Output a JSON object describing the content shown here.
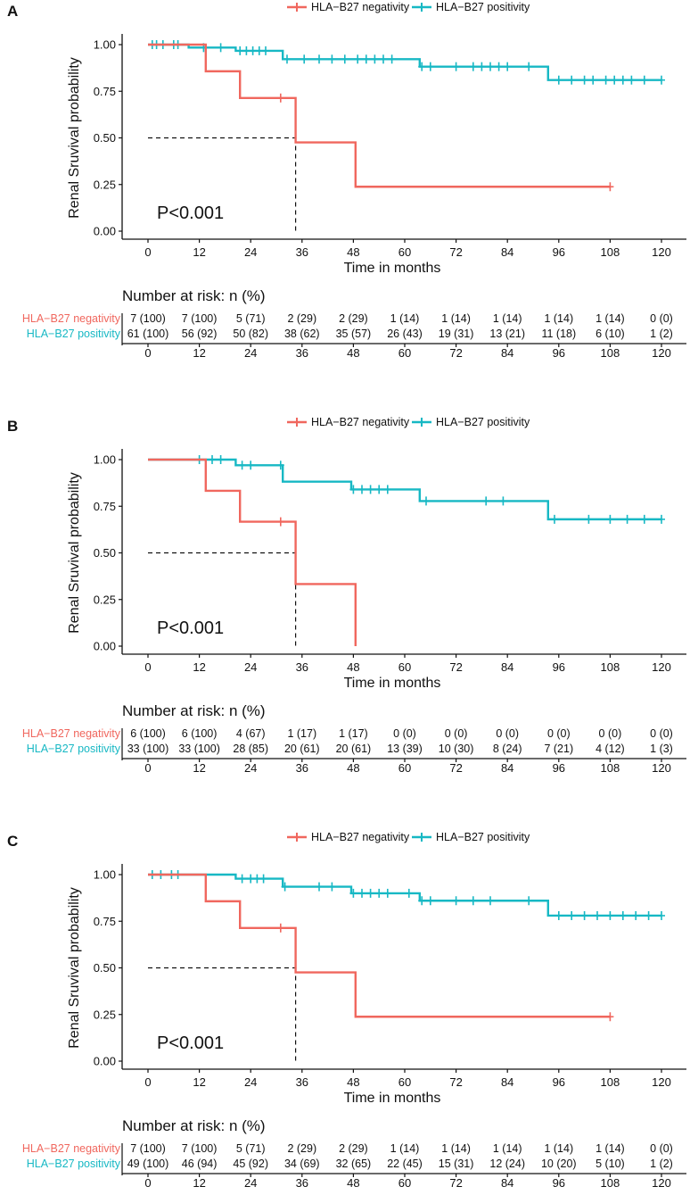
{
  "colors": {
    "negativity": "#F0675E",
    "positivity": "#17B8C4",
    "median": "#111111"
  },
  "legend": {
    "negativity_label": "HLA−B27 negativity",
    "positivity_label": "HLA−B27 positivity"
  },
  "risk": {
    "title": "Number at risk: n (%)",
    "group_negativity": "HLA−B27 negativity",
    "group_positivity": "HLA−B27 positivity"
  },
  "chart_data": [
    {
      "panel": "A",
      "type": "line",
      "title": "",
      "xlabel": "Time in months",
      "ylabel": "Renal Sruvival probability",
      "xlim": [
        0,
        120
      ],
      "ylim": [
        0,
        1
      ],
      "x_ticks": [
        "0",
        "12",
        "24",
        "36",
        "48",
        "60",
        "72",
        "84",
        "96",
        "108",
        "120"
      ],
      "y_ticks": [
        "0.00",
        "0.25",
        "0.50",
        "0.75",
        "1.00"
      ],
      "p_value": "P<0.001",
      "median": {
        "x": 34.5,
        "y": 0.5
      },
      "series": [
        {
          "name": "HLA−B27 negativity",
          "color_key": "negativity",
          "steps": [
            [
              0,
              1
            ],
            [
              13.5,
              0.857
            ],
            [
              21.5,
              0.714
            ],
            [
              34.5,
              0.476
            ],
            [
              48.5,
              0.238
            ],
            [
              108,
              0.238
            ]
          ],
          "censors": [
            [
              31,
              0.714
            ],
            [
              108,
              0.238
            ]
          ]
        },
        {
          "name": "HLA−B27 positivity",
          "color_key": "positivity",
          "steps": [
            [
              0,
              1
            ],
            [
              9.5,
              0.984
            ],
            [
              20.5,
              0.967
            ],
            [
              31.5,
              0.922
            ],
            [
              63.5,
              0.882
            ],
            [
              93.5,
              0.81
            ],
            [
              120,
              0.81
            ]
          ],
          "censors": [
            [
              1,
              1
            ],
            [
              2,
              1
            ],
            [
              3.5,
              1
            ],
            [
              6,
              1
            ],
            [
              7,
              1
            ],
            [
              13,
              0.984
            ],
            [
              17,
              0.984
            ],
            [
              21.5,
              0.967
            ],
            [
              23,
              0.967
            ],
            [
              24.5,
              0.967
            ],
            [
              26,
              0.967
            ],
            [
              27.5,
              0.967
            ],
            [
              32.5,
              0.922
            ],
            [
              36.5,
              0.922
            ],
            [
              40,
              0.922
            ],
            [
              43,
              0.922
            ],
            [
              46,
              0.922
            ],
            [
              49,
              0.922
            ],
            [
              51,
              0.922
            ],
            [
              53,
              0.922
            ],
            [
              55,
              0.922
            ],
            [
              57,
              0.922
            ],
            [
              64,
              0.882
            ],
            [
              66,
              0.882
            ],
            [
              72,
              0.882
            ],
            [
              76,
              0.882
            ],
            [
              78,
              0.882
            ],
            [
              80,
              0.882
            ],
            [
              82,
              0.882
            ],
            [
              84,
              0.882
            ],
            [
              89,
              0.882
            ],
            [
              96,
              0.81
            ],
            [
              99,
              0.81
            ],
            [
              102,
              0.81
            ],
            [
              104,
              0.81
            ],
            [
              107,
              0.81
            ],
            [
              109,
              0.81
            ],
            [
              111,
              0.81
            ],
            [
              113,
              0.81
            ],
            [
              116,
              0.81
            ],
            [
              120,
              0.81
            ]
          ]
        }
      ],
      "risk_times": [
        "0",
        "12",
        "24",
        "36",
        "48",
        "60",
        "72",
        "84",
        "96",
        "108",
        "120"
      ],
      "risk_negativity": [
        "7 (100)",
        "7 (100)",
        "5 (71)",
        "2 (29)",
        "2 (29)",
        "1 (14)",
        "1 (14)",
        "1 (14)",
        "1 (14)",
        "1 (14)",
        "0 (0)"
      ],
      "risk_positivity": [
        "61 (100)",
        "56 (92)",
        "50 (82)",
        "38 (62)",
        "35 (57)",
        "26 (43)",
        "19 (31)",
        "13 (21)",
        "11 (18)",
        "6 (10)",
        "1 (2)"
      ]
    },
    {
      "panel": "B",
      "type": "line",
      "title": "",
      "xlabel": "Time in months",
      "ylabel": "Renal Sruvival probability",
      "xlim": [
        0,
        120
      ],
      "ylim": [
        0,
        1
      ],
      "x_ticks": [
        "0",
        "12",
        "24",
        "36",
        "48",
        "60",
        "72",
        "84",
        "96",
        "108",
        "120"
      ],
      "y_ticks": [
        "0.00",
        "0.25",
        "0.50",
        "0.75",
        "1.00"
      ],
      "p_value": "P<0.001",
      "median": {
        "x": 34.5,
        "y": 0.5
      },
      "series": [
        {
          "name": "HLA−B27 negativity",
          "color_key": "negativity",
          "steps": [
            [
              0,
              1
            ],
            [
              13.5,
              0.833
            ],
            [
              21.5,
              0.667
            ],
            [
              34.5,
              0.333
            ],
            [
              48.5,
              0
            ]
          ],
          "censors": [
            [
              31,
              0.667
            ]
          ]
        },
        {
          "name": "HLA−B27 positivity",
          "color_key": "positivity",
          "steps": [
            [
              0,
              1
            ],
            [
              20.5,
              0.97
            ],
            [
              31.5,
              0.882
            ],
            [
              47.5,
              0.84
            ],
            [
              63.5,
              0.778
            ],
            [
              93.5,
              0.68
            ],
            [
              120,
              0.68
            ]
          ],
          "censors": [
            [
              12,
              1
            ],
            [
              15,
              1
            ],
            [
              17,
              1
            ],
            [
              22,
              0.97
            ],
            [
              24,
              0.97
            ],
            [
              31,
              0.97
            ],
            [
              48,
              0.84
            ],
            [
              50,
              0.84
            ],
            [
              52,
              0.84
            ],
            [
              54,
              0.84
            ],
            [
              56,
              0.84
            ],
            [
              65,
              0.778
            ],
            [
              79,
              0.778
            ],
            [
              83,
              0.778
            ],
            [
              95,
              0.68
            ],
            [
              103,
              0.68
            ],
            [
              108,
              0.68
            ],
            [
              112,
              0.68
            ],
            [
              116,
              0.68
            ],
            [
              120,
              0.68
            ]
          ]
        }
      ],
      "risk_times": [
        "0",
        "12",
        "24",
        "36",
        "48",
        "60",
        "72",
        "84",
        "96",
        "108",
        "120"
      ],
      "risk_negativity": [
        "6 (100)",
        "6 (100)",
        "4 (67)",
        "1 (17)",
        "1 (17)",
        "0 (0)",
        "0 (0)",
        "0 (0)",
        "0 (0)",
        "0 (0)",
        "0 (0)"
      ],
      "risk_positivity": [
        "33 (100)",
        "33 (100)",
        "28 (85)",
        "20 (61)",
        "20 (61)",
        "13 (39)",
        "10 (30)",
        "8 (24)",
        "7 (21)",
        "4 (12)",
        "1 (3)"
      ]
    },
    {
      "panel": "C",
      "type": "line",
      "title": "",
      "xlabel": "Time in months",
      "ylabel": "Renal Sruvival probability",
      "xlim": [
        0,
        120
      ],
      "ylim": [
        0,
        1
      ],
      "x_ticks": [
        "0",
        "12",
        "24",
        "36",
        "48",
        "60",
        "72",
        "84",
        "96",
        "108",
        "120"
      ],
      "y_ticks": [
        "0.00",
        "0.25",
        "0.50",
        "0.75",
        "1.00"
      ],
      "p_value": "P<0.001",
      "median": {
        "x": 34.5,
        "y": 0.5
      },
      "series": [
        {
          "name": "HLA−B27 negativity",
          "color_key": "negativity",
          "steps": [
            [
              0,
              1
            ],
            [
              13.5,
              0.857
            ],
            [
              21.5,
              0.714
            ],
            [
              34.5,
              0.476
            ],
            [
              48.5,
              0.238
            ],
            [
              108,
              0.238
            ]
          ],
          "censors": [
            [
              31,
              0.714
            ],
            [
              108,
              0.238
            ]
          ]
        },
        {
          "name": "HLA−B27 positivity",
          "color_key": "positivity",
          "steps": [
            [
              0,
              1
            ],
            [
              20.5,
              0.978
            ],
            [
              31.5,
              0.935
            ],
            [
              47.5,
              0.9
            ],
            [
              63.5,
              0.86
            ],
            [
              93.5,
              0.78
            ],
            [
              120,
              0.78
            ]
          ],
          "censors": [
            [
              1,
              1
            ],
            [
              3,
              1
            ],
            [
              5.5,
              1
            ],
            [
              7,
              1
            ],
            [
              22,
              0.978
            ],
            [
              24,
              0.978
            ],
            [
              25.5,
              0.978
            ],
            [
              27,
              0.978
            ],
            [
              32,
              0.935
            ],
            [
              40,
              0.935
            ],
            [
              43,
              0.935
            ],
            [
              48,
              0.9
            ],
            [
              50,
              0.9
            ],
            [
              52,
              0.9
            ],
            [
              54,
              0.9
            ],
            [
              56,
              0.9
            ],
            [
              61,
              0.9
            ],
            [
              64,
              0.86
            ],
            [
              66,
              0.86
            ],
            [
              72,
              0.86
            ],
            [
              76,
              0.86
            ],
            [
              80,
              0.86
            ],
            [
              89,
              0.86
            ],
            [
              96,
              0.78
            ],
            [
              99,
              0.78
            ],
            [
              102,
              0.78
            ],
            [
              105,
              0.78
            ],
            [
              108,
              0.78
            ],
            [
              111,
              0.78
            ],
            [
              114,
              0.78
            ],
            [
              117,
              0.78
            ],
            [
              120,
              0.78
            ]
          ]
        }
      ],
      "risk_times": [
        "0",
        "12",
        "24",
        "36",
        "48",
        "60",
        "72",
        "84",
        "96",
        "108",
        "120"
      ],
      "risk_negativity": [
        "7 (100)",
        "7 (100)",
        "5 (71)",
        "2 (29)",
        "2 (29)",
        "1 (14)",
        "1 (14)",
        "1 (14)",
        "1 (14)",
        "1 (14)",
        "0 (0)"
      ],
      "risk_positivity": [
        "49 (100)",
        "46 (94)",
        "45 (92)",
        "34 (69)",
        "32 (65)",
        "22 (45)",
        "15 (31)",
        "12 (24)",
        "10 (20)",
        "5 (10)",
        "1 (2)"
      ]
    }
  ]
}
